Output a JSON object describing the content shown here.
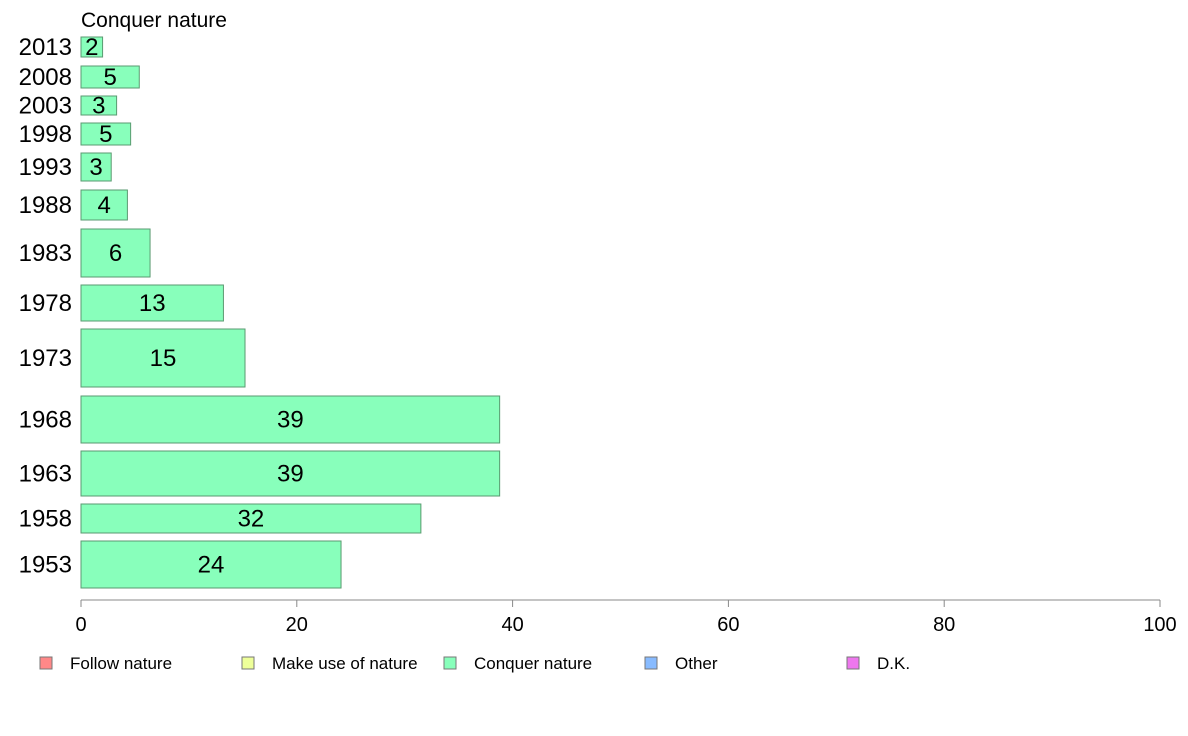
{
  "chart_data": {
    "type": "bar",
    "orientation": "horizontal",
    "title": "Conquer nature",
    "xlabel": "",
    "ylabel": "",
    "xlim": [
      0,
      100
    ],
    "xticks": [
      "0",
      "20",
      "40",
      "60",
      "80",
      "100"
    ],
    "grid": false,
    "legend_position": "bottom",
    "categories": [
      "2013",
      "2008",
      "2003",
      "1998",
      "1993",
      "1988",
      "1983",
      "1978",
      "1973",
      "1968",
      "1963",
      "1958",
      "1953"
    ],
    "series": [
      {
        "name": "Conquer nature",
        "color": "#88ffbb",
        "values": [
          2,
          5.4,
          3.3,
          4.6,
          2.8,
          4.3,
          6.4,
          13.2,
          15.2,
          38.8,
          38.8,
          31.5,
          24.1
        ],
        "labels": [
          "2",
          "5",
          "3",
          "5",
          "3",
          "4",
          "6",
          "13",
          "15",
          "39",
          "39",
          "32",
          "24"
        ]
      }
    ],
    "bar_edge_color": "#5a9a70",
    "legend": [
      {
        "label": "Follow nature",
        "color": "#ff8888"
      },
      {
        "label": "Make use of nature",
        "color": "#eeff99"
      },
      {
        "label": "Conquer nature",
        "color": "#88ffbb"
      },
      {
        "label": "Other",
        "color": "#88bbff"
      },
      {
        "label": "D.K.",
        "color": "#ee77ee"
      }
    ]
  }
}
